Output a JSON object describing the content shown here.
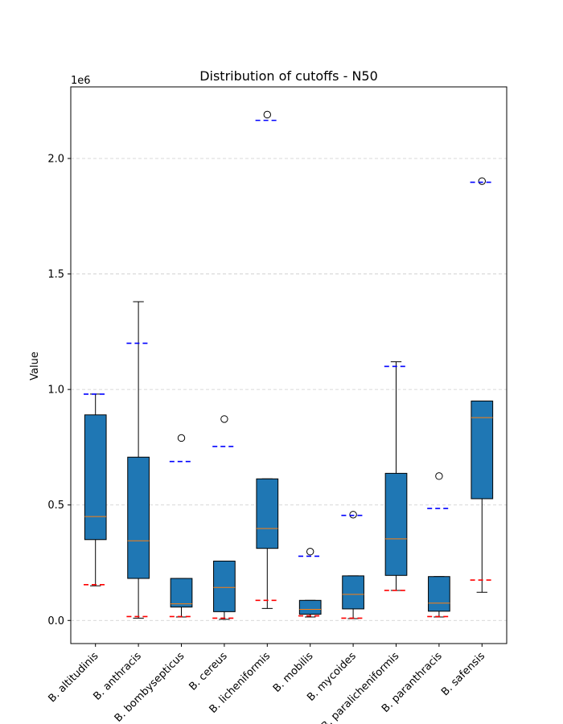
{
  "chart_data": {
    "type": "box",
    "title": "Distribution of cutoffs - N50",
    "xlabel": "",
    "ylabel": "Value",
    "y_scale_label": "1e6",
    "y_scale": 1000000,
    "ylim": [
      -100000,
      2310000
    ],
    "yticks": [
      0.0,
      0.5,
      1.0,
      1.5,
      2.0
    ],
    "ytick_labels": [
      "0.0",
      "0.5",
      "1.0",
      "1.5",
      "2.0"
    ],
    "grid": "y-dashed",
    "box_color": "#1f77b4",
    "median_color": "#ff7f0e",
    "upper_line_color": "#0000ff",
    "lower_line_color": "#ff0000",
    "categories": [
      "B. altitudinis",
      "B. anthracis",
      "B. bombysepticus",
      "B. cereus",
      "B. licheniformis",
      "B. mobilis",
      "B. mycoides",
      "B. paralicheniformis",
      "B. paranthracis",
      "B. safensis"
    ],
    "boxes": [
      {
        "whisker_low": 150000,
        "q1": 350000,
        "median": 450000,
        "q3": 890000,
        "whisker_high": 980000,
        "outliers": [],
        "upper_line": 980000,
        "lower_line": 155000
      },
      {
        "whisker_low": 10000,
        "q1": 182000,
        "median": 345000,
        "q3": 707000,
        "whisker_high": 1380000,
        "outliers": [],
        "upper_line": 1200000,
        "lower_line": 17000
      },
      {
        "whisker_low": 15000,
        "q1": 58000,
        "median": 72000,
        "q3": 182000,
        "whisker_high": 182000,
        "outliers": [
          790000
        ],
        "upper_line": 688000,
        "lower_line": 17000
      },
      {
        "whisker_low": 5000,
        "q1": 38000,
        "median": 143000,
        "q3": 257000,
        "whisker_high": 257000,
        "outliers": [
          872000
        ],
        "upper_line": 753000,
        "lower_line": 10000
      },
      {
        "whisker_low": 52000,
        "q1": 312000,
        "median": 398000,
        "q3": 613000,
        "whisker_high": 613000,
        "outliers": [
          2190000
        ],
        "upper_line": 2165000,
        "lower_line": 87000
      },
      {
        "whisker_low": 15000,
        "q1": 27000,
        "median": 48000,
        "q3": 87000,
        "whisker_high": 87000,
        "outliers": [
          298000
        ],
        "upper_line": 278000,
        "lower_line": 20000
      },
      {
        "whisker_low": 8000,
        "q1": 50000,
        "median": 113000,
        "q3": 193000,
        "whisker_high": 193000,
        "outliers": [
          458000
        ],
        "upper_line": 455000,
        "lower_line": 10000
      },
      {
        "whisker_low": 130000,
        "q1": 195000,
        "median": 353000,
        "q3": 637000,
        "whisker_high": 1120000,
        "outliers": [],
        "upper_line": 1100000,
        "lower_line": 130000
      },
      {
        "whisker_low": 15000,
        "q1": 40000,
        "median": 75000,
        "q3": 190000,
        "whisker_high": 190000,
        "outliers": [
          625000
        ],
        "upper_line": 485000,
        "lower_line": 17000
      },
      {
        "whisker_low": 122000,
        "q1": 527000,
        "median": 878000,
        "q3": 950000,
        "whisker_high": 950000,
        "outliers": [
          1902000
        ],
        "upper_line": 1897000,
        "lower_line": 175000
      }
    ]
  }
}
